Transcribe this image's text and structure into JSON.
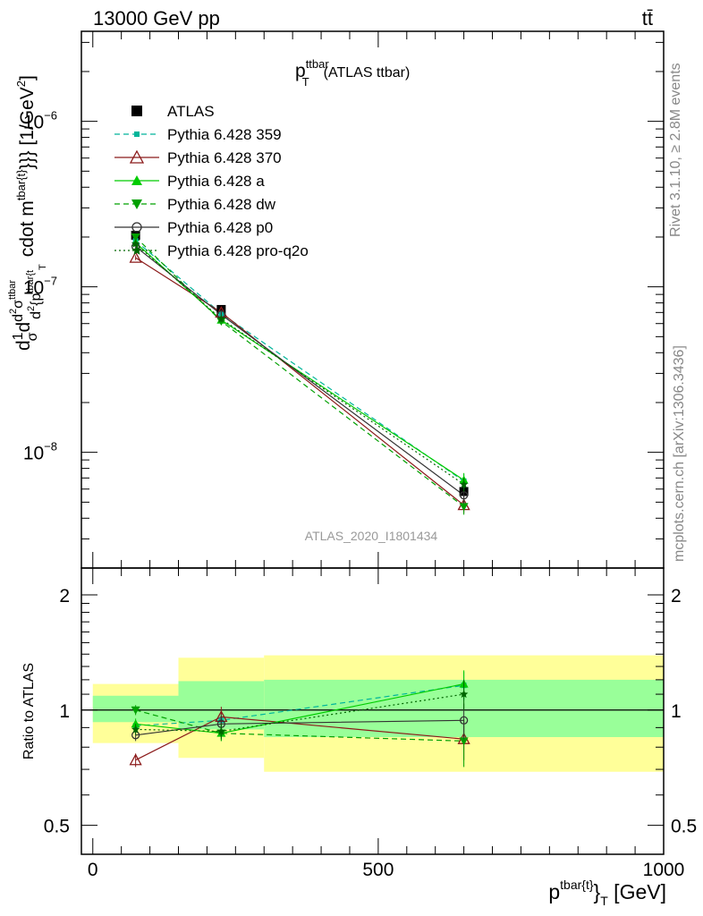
{
  "header": {
    "left": "13000 GeV pp",
    "right": "tt̄"
  },
  "side_labels": {
    "rivet": "Rivet 3.1.10, ≥ 2.8M events",
    "mcplots": "mcplots.cern.ch [arXiv:1306.3436]"
  },
  "chart_data": [
    {
      "type": "line",
      "title": "p_T^ttbar (ATLAS ttbar)",
      "title_parts": {
        "main": "p",
        "sup": "ttbar",
        "sub": "T",
        "rest": "(ATLAS ttbar)"
      },
      "ylabel": "d1/σ d d²σ^ttbar / d² {p_T^tbar{t}}} cdot m^tbar{t}}} [1/GeV²]",
      "ylabel_parts": {
        "a": "d",
        "b": "1",
        "c": "σ",
        "d": "d",
        "e": "d",
        "f": "2",
        "g": "σ",
        "h": "ttbar",
        "i": "d",
        "j": "2",
        "k": "{p",
        "l": "tbar{t",
        "m": "T",
        "n": "cdot m",
        "o": "tbar{t}",
        "p": "}}} [1/GeV",
        "q": "2",
        "r": "]"
      },
      "y_scale": "log",
      "ylim": [
        2e-09,
        3.5e-06
      ],
      "xlim": [
        -20,
        1000
      ],
      "y_ticks": [
        {
          "v": 1e-08,
          "base": "10",
          "exp": "−8"
        },
        {
          "v": 1e-07,
          "base": "10",
          "exp": "−7"
        },
        {
          "v": 1e-06,
          "base": "10",
          "exp": "−6"
        }
      ],
      "watermark": "ATLAS_2020_I1801434",
      "legend_position": "top-left",
      "x": [
        75,
        225,
        650
      ],
      "series": [
        {
          "name": "ATLAS",
          "values": [
            2.05e-07,
            7.3e-08,
            5.8e-09
          ],
          "errors": [
            1.2e-08,
            4e-09,
            6e-10
          ],
          "color": "#000000",
          "marker": "square-filled",
          "line": "none"
        },
        {
          "name": "Pythia 6.428 359",
          "values": [
            1.9e-07,
            6.9e-08,
            6.7e-09
          ],
          "errors": [
            5e-09,
            2.5e-09,
            7e-10
          ],
          "color": "#00b59a",
          "marker": "square-small",
          "line": "dashed"
        },
        {
          "name": "Pythia 6.428 370",
          "values": [
            1.5e-07,
            7e-08,
            4.8e-09
          ],
          "errors": [
            5e-09,
            2.5e-09,
            5e-10
          ],
          "color": "#8b1a1a",
          "marker": "triangle-open",
          "line": "solid"
        },
        {
          "name": "Pythia 6.428 a",
          "values": [
            1.85e-07,
            6.3e-08,
            6.8e-09
          ],
          "errors": [
            5e-09,
            2.5e-09,
            7e-10
          ],
          "color": "#00cc00",
          "marker": "triangle-filled",
          "line": "solid"
        },
        {
          "name": "Pythia 6.428 dw",
          "values": [
            2e-07,
            6.2e-08,
            4.7e-09
          ],
          "errors": [
            5e-09,
            2.5e-09,
            5e-10
          ],
          "color": "#00a000",
          "marker": "triangle-down-filled",
          "line": "dashed"
        },
        {
          "name": "Pythia 6.428 p0",
          "values": [
            1.75e-07,
            6.8e-08,
            5.5e-09
          ],
          "errors": [
            5e-09,
            2.5e-09,
            6e-10
          ],
          "color": "#333333",
          "marker": "circle-open",
          "line": "solid"
        },
        {
          "name": "Pythia 6.428 pro-q2o",
          "values": [
            1.82e-07,
            6.4e-08,
            6.4e-09
          ],
          "errors": [
            5e-09,
            2.5e-09,
            6e-10
          ],
          "color": "#006600",
          "marker": "star",
          "line": "dotted"
        }
      ]
    },
    {
      "type": "line",
      "ylabel": "Ratio to ATLAS",
      "y_scale": "log",
      "ylim": [
        0.42,
        2.35
      ],
      "xlim": [
        -20,
        1000
      ],
      "y_ticks": [
        {
          "v": 0.5,
          "label": "0.5"
        },
        {
          "v": 1,
          "label": "1"
        },
        {
          "v": 2,
          "label": "2"
        }
      ],
      "x_ticks": [
        0,
        500,
        1000
      ],
      "xlabel": "p^tbar{t}}_T [GeV]",
      "xlabel_parts": {
        "main": "p",
        "sup": "tbar{t}",
        "mid": "}",
        "sub": "T",
        "rest": " [GeV]"
      },
      "bands": [
        {
          "x0": 0,
          "x1": 150,
          "yellow": [
            0.82,
            1.17
          ],
          "green": [
            0.93,
            1.09
          ]
        },
        {
          "x0": 150,
          "x1": 300,
          "yellow": [
            0.75,
            1.37
          ],
          "green": [
            0.89,
            1.19
          ]
        },
        {
          "x0": 300,
          "x1": 1000,
          "yellow": [
            0.69,
            1.39
          ],
          "green": [
            0.85,
            1.2
          ]
        }
      ],
      "x": [
        75,
        225,
        650
      ],
      "series": [
        {
          "name": "Pythia 6.428 359",
          "values": [
            0.91,
            0.94,
            1.16
          ],
          "errors": [
            0.03,
            0.04,
            0.1
          ]
        },
        {
          "name": "Pythia 6.428 370",
          "values": [
            0.74,
            0.96,
            0.84
          ],
          "errors": [
            0.03,
            0.06,
            0.1
          ]
        },
        {
          "name": "Pythia 6.428 a",
          "values": [
            0.92,
            0.87,
            1.17
          ],
          "errors": [
            0.03,
            0.04,
            0.1
          ]
        },
        {
          "name": "Pythia 6.428 dw",
          "values": [
            1.0,
            0.87,
            0.83
          ],
          "errors": [
            0.03,
            0.04,
            0.12
          ]
        },
        {
          "name": "Pythia 6.428 p0",
          "values": [
            0.86,
            0.92,
            0.94
          ],
          "errors": [
            0.03,
            0.05,
            0.1
          ]
        },
        {
          "name": "Pythia 6.428 pro-q2o",
          "values": [
            0.89,
            0.88,
            1.1
          ],
          "errors": [
            0.03,
            0.04,
            0.1
          ]
        }
      ]
    }
  ]
}
